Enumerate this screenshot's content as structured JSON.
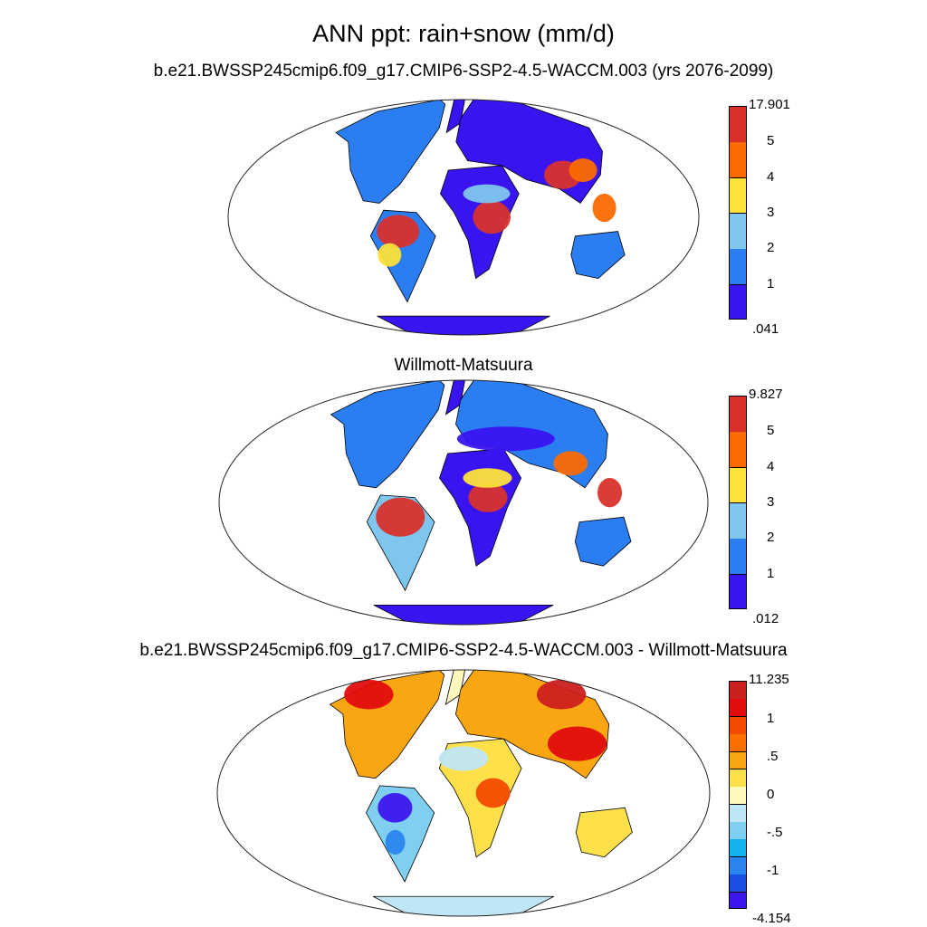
{
  "title": "ANN ppt: rain+snow (mm/d)",
  "panels": [
    {
      "id": "model",
      "subtitle": "b.e21.BWSSP245cmip6.f09_g17.CMIP6-SSP2-4.5-WACCM.003 (yrs 2076-2099)",
      "colorbar": {
        "labels": [
          ".041",
          "1",
          "2",
          "3",
          "4",
          "5",
          "17.901"
        ],
        "colors": [
          "#3a14f0",
          "#2a7ef2",
          "#7ec6ee",
          "#fde23a",
          "#fa6a00",
          "#d8312c"
        ]
      }
    },
    {
      "id": "observations",
      "subtitle": "Willmott-Matsuura",
      "colorbar": {
        "labels": [
          ".012",
          "1",
          "2",
          "3",
          "4",
          "5",
          "9.827"
        ],
        "colors": [
          "#3a14f0",
          "#2a7ef2",
          "#7ec6ee",
          "#fde23a",
          "#fa6a00",
          "#d8312c"
        ]
      }
    },
    {
      "id": "difference",
      "subtitle": "b.e21.BWSSP245cmip6.f09_g17.CMIP6-SSP2-4.5-WACCM.003 - Willmott-Matsuura",
      "colorbar": {
        "labels": [
          "-4.154",
          "-1",
          "-.5",
          "0",
          ".5",
          "1",
          "11.235"
        ],
        "colors": [
          "#3c16ec",
          "#1a4fe2",
          "#2a86ee",
          "#12b4f0",
          "#7fd0f0",
          "#bfe6f4",
          "#fff8bc",
          "#fde04a",
          "#f9a612",
          "#fa7000",
          "#f44a00",
          "#e20c0c",
          "#cc1f1f"
        ]
      }
    }
  ]
}
